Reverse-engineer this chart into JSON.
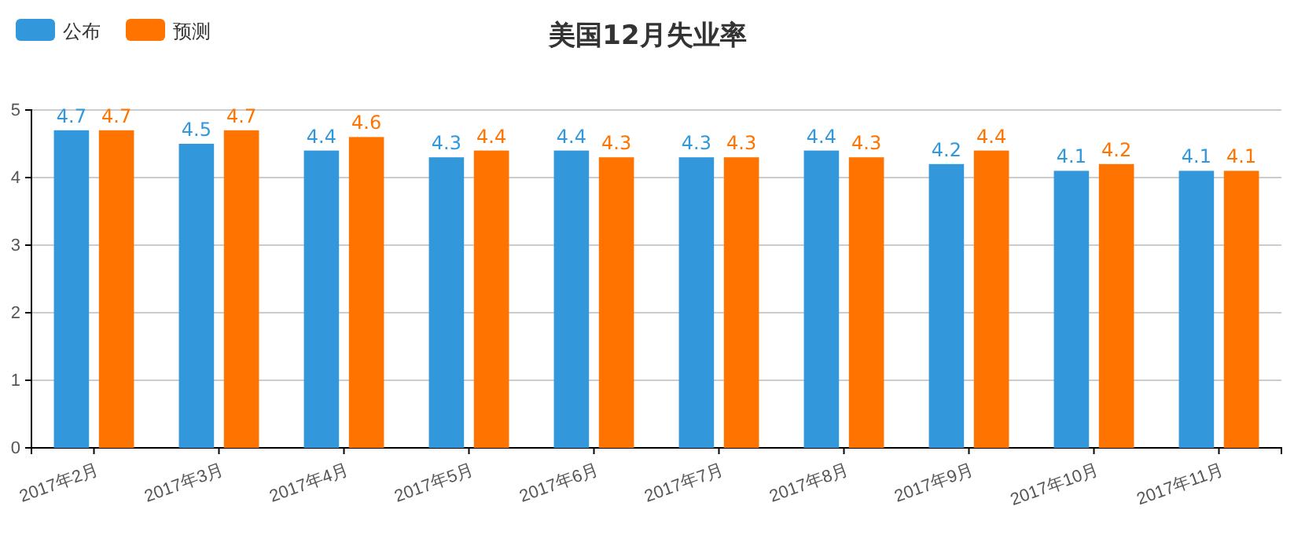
{
  "chart_data": {
    "type": "bar",
    "title": "美国12月失业率",
    "categories": [
      "2017年2月",
      "2017年3月",
      "2017年4月",
      "2017年5月",
      "2017年6月",
      "2017年7月",
      "2017年8月",
      "2017年9月",
      "2017年10月",
      "2017年11月"
    ],
    "series": [
      {
        "name": "公布",
        "color": "#3398db",
        "values": [
          4.7,
          4.5,
          4.4,
          4.3,
          4.4,
          4.3,
          4.4,
          4.2,
          4.1,
          4.1
        ]
      },
      {
        "name": "预测",
        "color": "#ff7300",
        "values": [
          4.7,
          4.7,
          4.6,
          4.4,
          4.3,
          4.3,
          4.3,
          4.4,
          4.2,
          4.1
        ]
      }
    ],
    "ylim": [
      0,
      5
    ],
    "yticks": [
      0,
      1,
      2,
      3,
      4,
      5
    ],
    "grid": "y",
    "legend": "top left",
    "data_labels": true
  }
}
